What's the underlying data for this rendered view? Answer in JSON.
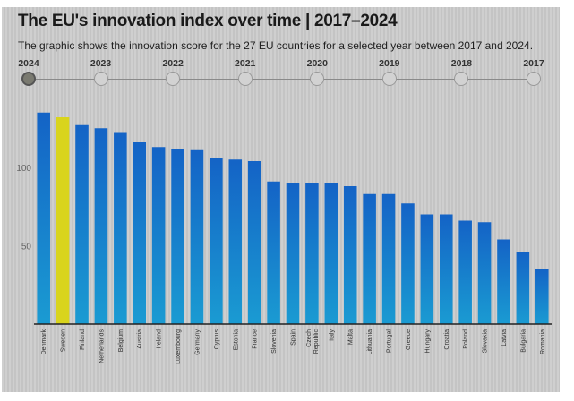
{
  "header": {
    "title": "The EU's innovation index over time | 2017–2024",
    "subtitle": "The graphic shows the innovation score for the 27 EU countries for a selected year between 2017 and 2024."
  },
  "timeline": {
    "years": [
      "2024",
      "2023",
      "2022",
      "2021",
      "2020",
      "2019",
      "2018",
      "2017"
    ],
    "selected": "2024"
  },
  "colors": {
    "bar_top": "#1463c6",
    "bar_bottom": "#1a9bd2",
    "highlight": "#d9d41c",
    "axis": "#222222"
  },
  "chart_data": {
    "type": "bar",
    "title": "The EU's innovation index over time | 2017–2024",
    "subtitle": "The graphic shows the innovation score for the 27 EU countries for a selected year between 2017 and 2024.",
    "year": "2024",
    "xlabel": "",
    "ylabel": "",
    "ylim": [
      0,
      135
    ],
    "yticks": [
      50,
      100
    ],
    "grid": false,
    "highlighted_category": "Sweden",
    "categories": [
      "Denmark",
      "Sweden",
      "Finland",
      "Netherlands",
      "Belgium",
      "Austria",
      "Ireland",
      "Luxembourg",
      "Germany",
      "Cyprus",
      "Estonia",
      "France",
      "Slovenia",
      "Spain",
      "Czech Republic",
      "Italy",
      "Malta",
      "Lithuania",
      "Portugal",
      "Greece",
      "Hungary",
      "Croatia",
      "Poland",
      "Slovakia",
      "Latvia",
      "Bulgaria",
      "Romania"
    ],
    "values": [
      135,
      132,
      127,
      125,
      122,
      116,
      113,
      112,
      111,
      106,
      105,
      104,
      91,
      90,
      90,
      90,
      88,
      83,
      83,
      77,
      70,
      70,
      66,
      65,
      54,
      46,
      35
    ]
  }
}
